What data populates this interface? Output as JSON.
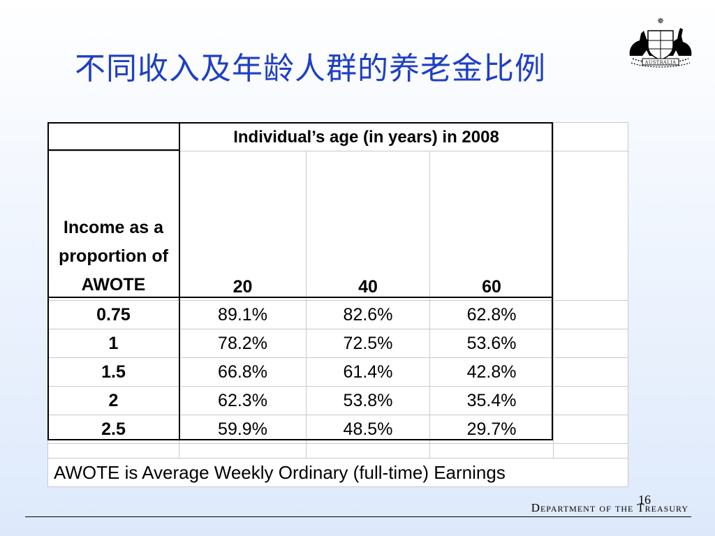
{
  "title": "不同收入及年龄人群的养老金比例",
  "emblem": {
    "text": "AUSTRALIA"
  },
  "table": {
    "age_header": "Individual’s age (in years) in 2008",
    "row_header": "Income as a proportion of AWOTE",
    "ages": [
      "20",
      "40",
      "60"
    ],
    "rows": [
      {
        "income": "0.75",
        "values": [
          "89.1%",
          "82.6%",
          "62.8%"
        ]
      },
      {
        "income": "1",
        "values": [
          "78.2%",
          "72.5%",
          "53.6%"
        ]
      },
      {
        "income": "1.5",
        "values": [
          "66.8%",
          "61.4%",
          "42.8%"
        ]
      },
      {
        "income": "2",
        "values": [
          "62.3%",
          "53.8%",
          "35.4%"
        ]
      },
      {
        "income": "2.5",
        "values": [
          "59.9%",
          "48.5%",
          "29.7%"
        ]
      }
    ],
    "note": "AWOTE is Average Weekly Ordinary (full-time) Earnings"
  },
  "footer": {
    "page_number": "16",
    "department": "Department of the Treasury"
  },
  "colors": {
    "title": "#1f3fc4",
    "background_bottom": "#dde9fb"
  }
}
